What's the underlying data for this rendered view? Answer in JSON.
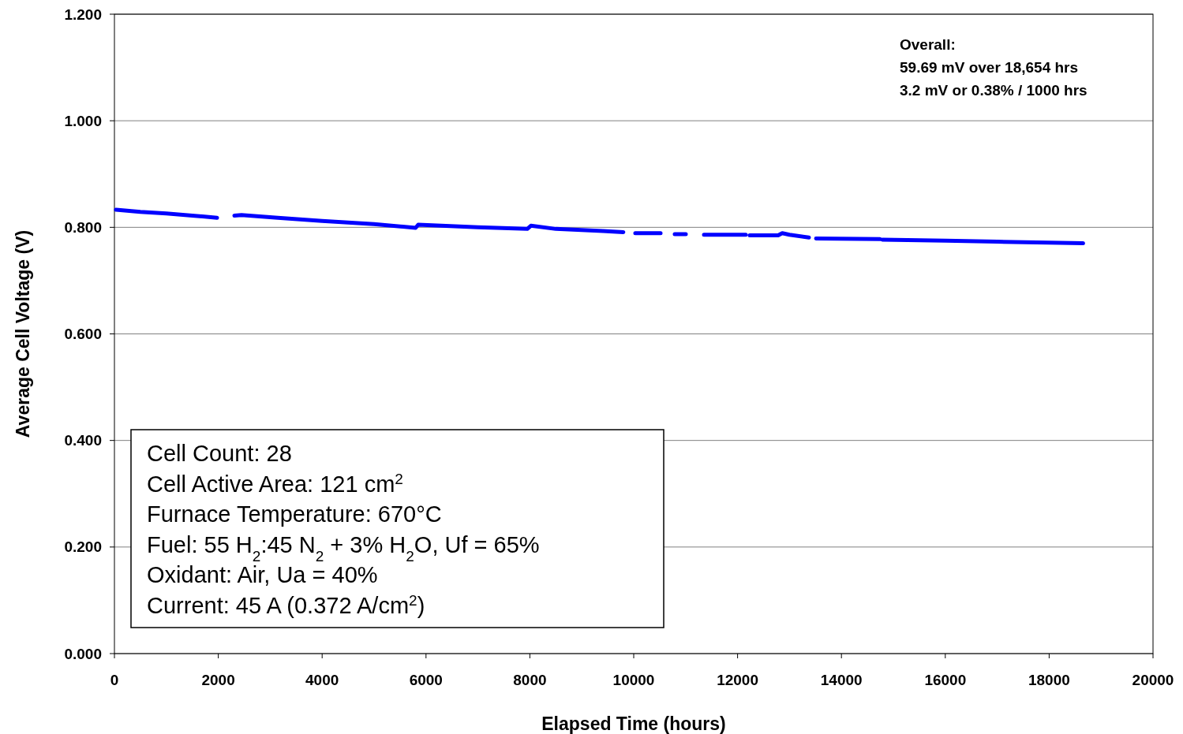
{
  "chart_data": {
    "type": "line",
    "xlabel": "Elapsed Time (hours)",
    "ylabel": "Average Cell Voltage (V)",
    "x": [
      30,
      500,
      1000,
      1500,
      1976,
      2150,
      2310,
      2447,
      3146,
      4000,
      5000,
      5800,
      5850,
      7000,
      7950,
      8020,
      8500,
      9407,
      9800,
      9900,
      10030,
      10517,
      10650,
      10790,
      11003,
      11200,
      11353,
      12158,
      12200,
      12234,
      12781,
      12860,
      13000,
      13374,
      13450,
      13511,
      14742,
      14765,
      14787,
      16000,
      17000,
      18654
    ],
    "series": [
      {
        "color": "#0000ff",
        "values": [
          0.833,
          0.829,
          0.826,
          0.822,
          0.818,
          null,
          0.822,
          0.823,
          0.818,
          0.812,
          0.806,
          0.799,
          0.805,
          0.8,
          0.797,
          0.803,
          0.797,
          0.793,
          0.791,
          null,
          0.789,
          0.789,
          null,
          0.787,
          0.787,
          null,
          0.786,
          0.786,
          null,
          0.785,
          0.785,
          0.789,
          0.786,
          0.781,
          null,
          0.779,
          0.778,
          null,
          0.777,
          0.775,
          0.773,
          0.77
        ]
      }
    ],
    "xlim": [
      0,
      20000
    ],
    "xticks": [
      0,
      2000,
      4000,
      6000,
      8000,
      10000,
      12000,
      14000,
      16000,
      18000,
      20000
    ],
    "ylim": [
      0,
      1.2
    ],
    "yticks": [
      {
        "value": 0,
        "label": "0.000"
      },
      {
        "value": 0.2,
        "label": "0.200"
      },
      {
        "value": 0.4,
        "label": "0.400"
      },
      {
        "value": 0.6,
        "label": "0.600"
      },
      {
        "value": 0.8,
        "label": "0.800"
      },
      {
        "value": 1,
        "label": "1.000"
      },
      {
        "value": 1.2,
        "label": "1.200"
      }
    ],
    "grid": "y",
    "marker": "none",
    "line_style": "solid",
    "annotations": [
      "Overall:\n59.69 mV over 18,654 hrs\n3.2 mV or 0.38% / 1000 hrs",
      "Cell Count: 28\nCell Active Area: 121 cm$^{2}$\nFurnace Temperature: 670°C\nFuel: 55 H$_{2}$:45 N$_{2}$ + 3% H$_{2}$O, Uf = 65%\nOxidant: Air, Ua = 40%\nCurrent: 45 A (0.372 A/cm$^{2}$)"
    ]
  }
}
